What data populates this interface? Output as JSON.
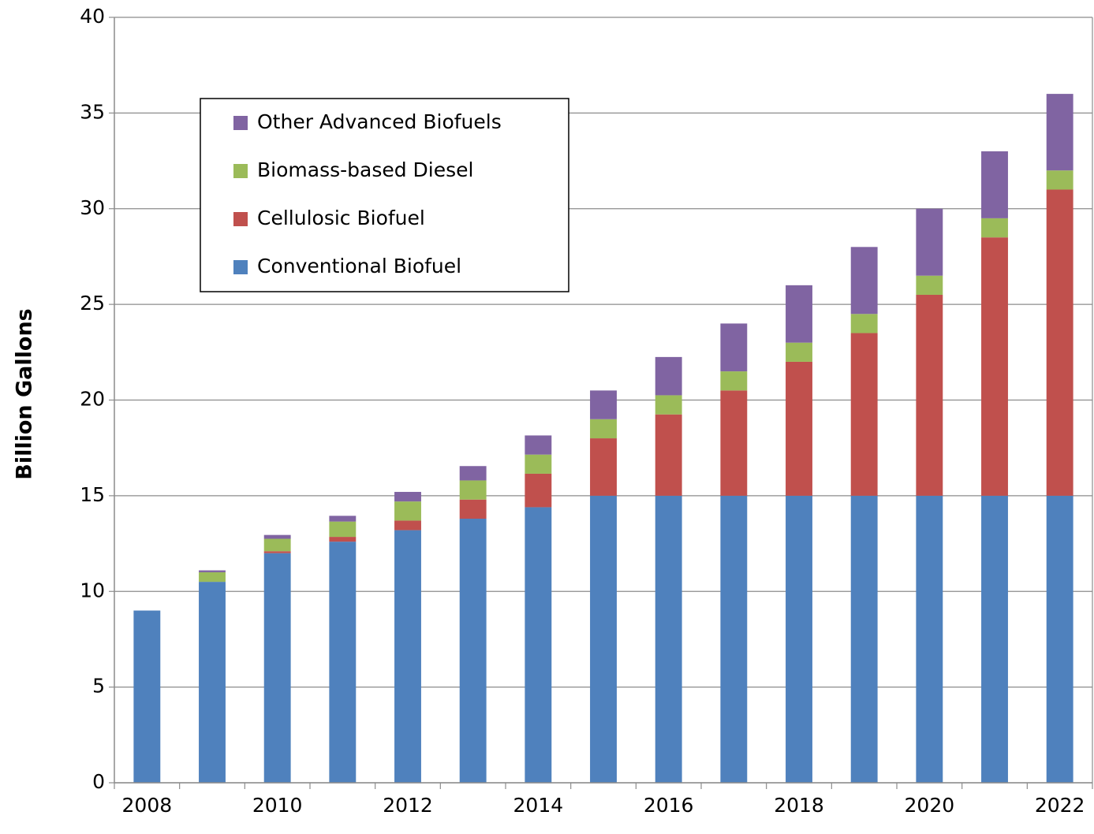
{
  "chart_data": {
    "type": "stacked_bar",
    "y_label": "Billion Gallons",
    "categories": [
      2008,
      null,
      2010,
      null,
      2012,
      null,
      2014,
      null,
      2016,
      null,
      2018,
      null,
      2020,
      null,
      2022
    ],
    "series": [
      {
        "name": "Conventional Biofuel",
        "color": "#4f81bd",
        "values": [
          9,
          10.5,
          12,
          12.6,
          13.2,
          13.8,
          14.4,
          15,
          15,
          15,
          15,
          15,
          15,
          15,
          15
        ]
      },
      {
        "name": "Cellulosic Biofuel",
        "color": "#c0504d",
        "values": [
          0,
          0,
          0.1,
          0.25,
          0.5,
          1.0,
          1.75,
          3.0,
          4.25,
          5.5,
          7.0,
          8.5,
          10.5,
          13.5,
          16
        ]
      },
      {
        "name": "Biomass-based Diesel",
        "color": "#9bbb59",
        "values": [
          0,
          0.5,
          0.65,
          0.8,
          1.0,
          1.0,
          1.0,
          1.0,
          1.0,
          1.0,
          1.0,
          1.0,
          1.0,
          1.0,
          1.0
        ]
      },
      {
        "name": "Other Advanced Biofuels",
        "color": "#8064a2",
        "values": [
          0,
          0.1,
          0.2,
          0.3,
          0.5,
          0.75,
          1.0,
          1.5,
          2.0,
          2.5,
          3.0,
          3.5,
          3.5,
          3.5,
          4.0
        ]
      }
    ],
    "ylim": [
      0,
      40
    ],
    "yticks": [
      0,
      5,
      10,
      15,
      20,
      25,
      30,
      35,
      40
    ],
    "grid": true,
    "legend": "upper left"
  }
}
